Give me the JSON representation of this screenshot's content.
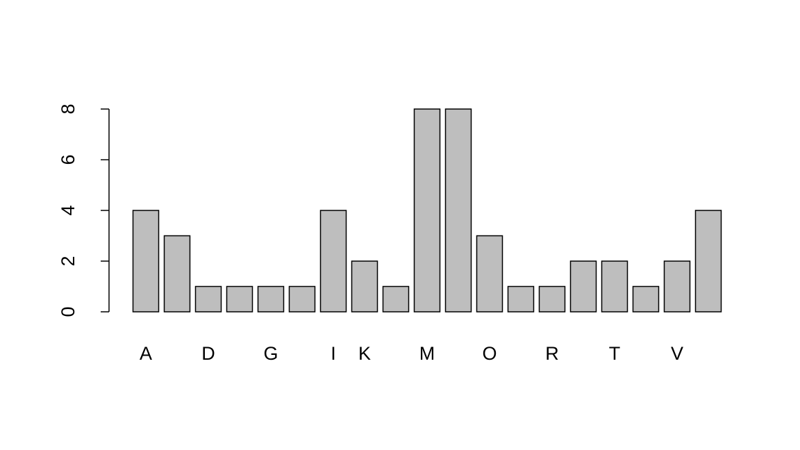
{
  "chart_data": {
    "type": "bar",
    "categories": [
      "A",
      null,
      "D",
      null,
      "G",
      null,
      "I",
      "K",
      null,
      "M",
      null,
      "O",
      null,
      "R",
      null,
      "T",
      null,
      "V",
      null
    ],
    "values": [
      4,
      3,
      1,
      1,
      1,
      1,
      4,
      2,
      1,
      8,
      8,
      3,
      1,
      1,
      2,
      2,
      1,
      2,
      4
    ],
    "color": "#bebebe",
    "ylim": [
      0,
      8
    ],
    "yticks": [
      0,
      2,
      4,
      6,
      8
    ],
    "grid": false
  }
}
